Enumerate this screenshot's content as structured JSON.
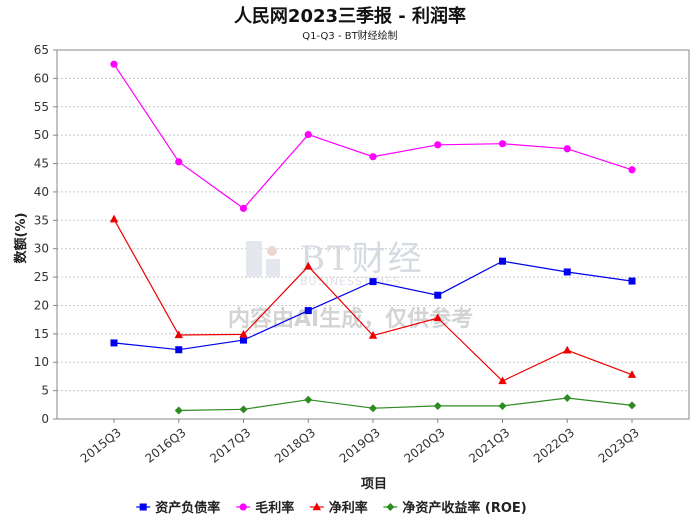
{
  "chart_data": {
    "type": "line",
    "title": "人民网2023三季报 - 利润率",
    "subtitle": "Q1-Q3 - BT财经绘制",
    "xlabel": "项目",
    "ylabel": "数额(%)",
    "ylim": [
      0,
      65
    ],
    "yticks": [
      0,
      5,
      10,
      15,
      20,
      25,
      30,
      35,
      40,
      45,
      50,
      55,
      60,
      65
    ],
    "categories": [
      "2015Q3",
      "2016Q3",
      "2017Q3",
      "2018Q3",
      "2019Q3",
      "2020Q3",
      "2021Q3",
      "2022Q3",
      "2023Q3"
    ],
    "grid": true,
    "legend_position": "bottom",
    "series": [
      {
        "name": "资产负债率",
        "color": "#0000ee",
        "marker": "square",
        "values": [
          13.4,
          12.2,
          13.9,
          19.1,
          24.2,
          21.8,
          27.8,
          25.9,
          24.3
        ]
      },
      {
        "name": "毛利率",
        "color": "#ff00ff",
        "marker": "circle",
        "values": [
          62.5,
          45.3,
          37.1,
          50.1,
          46.2,
          48.3,
          48.5,
          47.6,
          43.9
        ]
      },
      {
        "name": "净利率",
        "color": "#ee0000",
        "marker": "triangle",
        "values": [
          35.2,
          14.8,
          14.9,
          26.9,
          14.7,
          17.8,
          6.7,
          12.1,
          7.8
        ]
      },
      {
        "name": "净资产收益率 (ROE)",
        "color": "#2e8b22",
        "marker": "diamond",
        "values": [
          null,
          1.5,
          1.7,
          3.4,
          1.9,
          2.3,
          2.3,
          3.7,
          2.4
        ]
      }
    ]
  },
  "watermark": {
    "brand": "BT财经",
    "brand_sub": "BUSINESSTIMES",
    "note": "内容由AI生成，仅供参考"
  }
}
